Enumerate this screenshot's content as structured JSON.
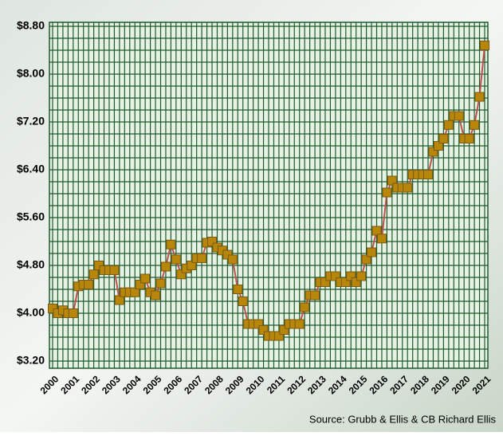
{
  "chart_data": {
    "type": "line",
    "source": "Source:  Grubb & Ellis & CB Richard Ellis",
    "line_color": "#c0504d",
    "marker_color": "#b8860b",
    "grid": true,
    "x": [
      2000,
      2000.25,
      2000.5,
      2000.75,
      2001,
      2001.25,
      2001.5,
      2001.75,
      2002,
      2002.25,
      2002.5,
      2002.75,
      2003,
      2003.25,
      2003.5,
      2003.75,
      2004,
      2004.25,
      2004.5,
      2004.75,
      2005,
      2005.25,
      2005.5,
      2005.75,
      2006,
      2006.25,
      2006.5,
      2006.75,
      2007,
      2007.25,
      2007.5,
      2007.75,
      2008,
      2008.25,
      2008.5,
      2008.75,
      2009,
      2009.25,
      2009.5,
      2009.75,
      2010,
      2010.25,
      2010.5,
      2010.75,
      2011,
      2011.25,
      2011.5,
      2011.75,
      2012,
      2012.25,
      2012.5,
      2012.75,
      2013,
      2013.25,
      2013.5,
      2013.75,
      2014,
      2014.25,
      2014.5,
      2014.75,
      2015,
      2015.25,
      2015.5,
      2015.75,
      2016,
      2016.25,
      2016.5,
      2016.75,
      2017,
      2017.25,
      2017.5,
      2017.75,
      2018,
      2018.25,
      2018.5,
      2018.75,
      2019,
      2019.25,
      2019.5,
      2019.75,
      2020,
      2020.25,
      2020.5,
      2020.75,
      2021
    ],
    "values": [
      4.08,
      4.0,
      4.05,
      4.0,
      4.0,
      4.45,
      4.48,
      4.48,
      4.65,
      4.8,
      4.72,
      4.72,
      4.72,
      4.22,
      4.35,
      4.35,
      4.35,
      4.48,
      4.58,
      4.35,
      4.3,
      4.5,
      4.78,
      5.15,
      4.9,
      4.65,
      4.75,
      4.8,
      4.92,
      4.92,
      5.18,
      5.2,
      5.1,
      5.05,
      4.98,
      4.9,
      4.4,
      4.2,
      3.82,
      3.82,
      3.82,
      3.72,
      3.62,
      3.62,
      3.62,
      3.72,
      3.82,
      3.82,
      3.82,
      4.1,
      4.3,
      4.3,
      4.52,
      4.52,
      4.62,
      4.62,
      4.52,
      4.52,
      4.62,
      4.52,
      4.62,
      4.9,
      5.02,
      5.38,
      5.25,
      6.02,
      6.22,
      6.1,
      6.1,
      6.1,
      6.32,
      6.32,
      6.32,
      6.32,
      6.7,
      6.8,
      6.92,
      7.15,
      7.3,
      7.3,
      6.92,
      6.92,
      7.15,
      7.62,
      8.48
    ],
    "xlim": [
      2000,
      2021
    ],
    "xticks": [
      2000,
      2001,
      2002,
      2003,
      2004,
      2005,
      2006,
      2007,
      2008,
      2009,
      2010,
      2011,
      2012,
      2013,
      2014,
      2015,
      2016,
      2017,
      2018,
      2019,
      2020,
      2021
    ],
    "ylim": [
      3.2,
      8.8
    ],
    "yticks": [
      {
        "value": 3.2,
        "label": "$3.20"
      },
      {
        "value": 4.0,
        "label": "$4.00"
      },
      {
        "value": 4.8,
        "label": "$4.80"
      },
      {
        "value": 5.6,
        "label": "$5.60"
      },
      {
        "value": 6.4,
        "label": "$6.40"
      },
      {
        "value": 7.2,
        "label": "$7.20"
      },
      {
        "value": 8.0,
        "label": "$8.00"
      },
      {
        "value": 8.8,
        "label": "$8.80"
      }
    ]
  }
}
